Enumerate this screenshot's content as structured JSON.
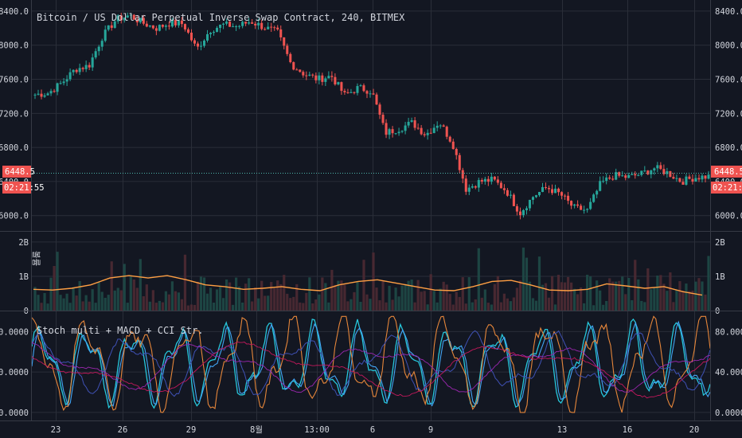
{
  "chart_data": {
    "type": "candlestick",
    "title": "Bitcoin / US Dollar Perpetual Inverse Swap Contract, 240, BITMEX",
    "price_ticks": [
      "8400.0",
      "8000.0",
      "7600.0",
      "7200.0",
      "6800.0",
      "6400.0",
      "6000.0"
    ],
    "price_range": [
      5820,
      8530
    ],
    "last_price": "6448.5",
    "countdown": "02:21:55",
    "x_ticks": [
      "23",
      "26",
      "29",
      "8월",
      "13:00",
      "6",
      "9",
      "13",
      "16",
      "20"
    ],
    "price_path": [
      7420,
      7440,
      7560,
      7720,
      7760,
      8100,
      8300,
      8350,
      8260,
      8200,
      8260,
      8250,
      7950,
      8180,
      8240,
      8220,
      8280,
      8210,
      8150,
      7780,
      7660,
      7600,
      7640,
      7410,
      7500,
      7460,
      6970,
      7020,
      7090,
      6950,
      7100,
      6850,
      6310,
      6400,
      6420,
      6290,
      6030,
      6230,
      6330,
      6250,
      6090,
      6060,
      6380,
      6470,
      6450,
      6490,
      6560,
      6500,
      6400,
      6450,
      6460
    ],
    "volume_panel": {
      "label": "볼륨",
      "ticks": [
        "2B",
        "1B",
        "0"
      ],
      "range": [
        0,
        2.3
      ],
      "ma_path": [
        0.62,
        0.6,
        0.65,
        0.75,
        0.95,
        1.02,
        0.95,
        1.02,
        0.9,
        0.75,
        0.7,
        0.62,
        0.65,
        0.7,
        0.62,
        0.58,
        0.75,
        0.85,
        0.9,
        0.8,
        0.7,
        0.6,
        0.58,
        0.7,
        0.85,
        0.88,
        0.75,
        0.6,
        0.58,
        0.62,
        0.78,
        0.72,
        0.65,
        0.7,
        0.55,
        0.45
      ]
    },
    "oscillator_panel": {
      "label": "Stoch multi + MACD + CCI Str.",
      "ticks": [
        "80.0000",
        "40.0000",
        "0.0000"
      ],
      "range": [
        -8,
        100
      ]
    }
  }
}
